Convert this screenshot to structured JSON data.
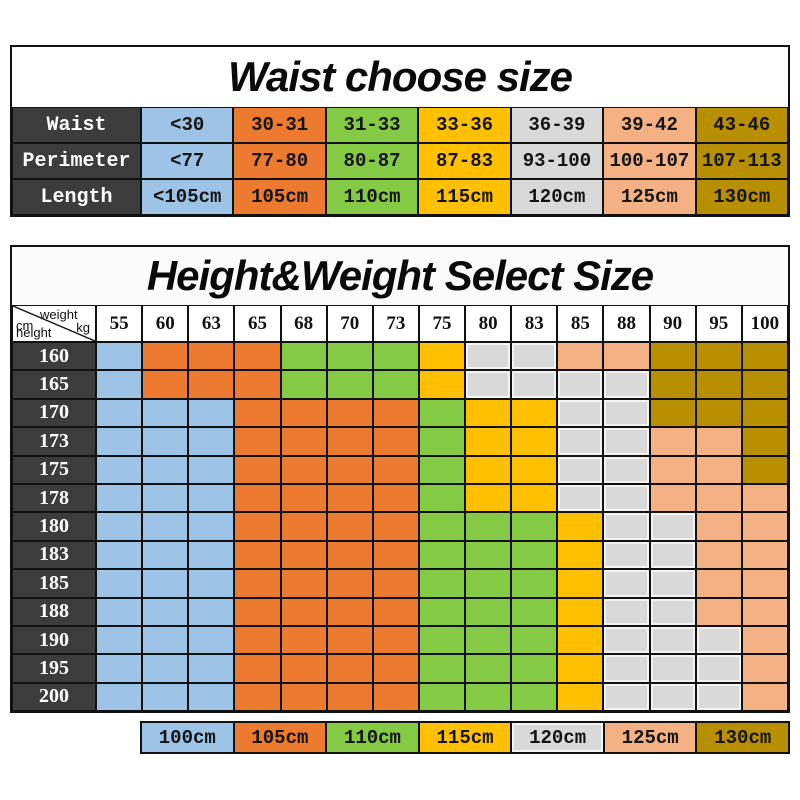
{
  "colors": {
    "B": "#9DC3E6",
    "O": "#EC7B2F",
    "G": "#85CA45",
    "Y": "#FFC000",
    "S": "#D9D9D9",
    "P": "#F4B183",
    "D": "#B78F00",
    "header_dark": "#3C3C3C",
    "border": "#111111"
  },
  "waist_table": {
    "title": "Waist choose size",
    "column_keys": [
      "B",
      "O",
      "G",
      "Y",
      "S",
      "P",
      "D"
    ],
    "rows": [
      {
        "label": "Waist",
        "cells": [
          "<30",
          "30-31",
          "31-33",
          "33-36",
          "36-39",
          "39-42",
          "43-46"
        ]
      },
      {
        "label": "Perimeter",
        "cells": [
          "<77",
          "77-80",
          "80-87",
          "87-83",
          "93-100",
          "100-107",
          "107-113"
        ]
      },
      {
        "label": "Length",
        "cells": [
          "<105cm",
          "105cm",
          "110cm",
          "115cm",
          "120cm",
          "125cm",
          "130cm"
        ]
      }
    ]
  },
  "size_table": {
    "title": "Height&Weight Select Size",
    "corner": {
      "weight": "weight",
      "kg": "kg",
      "cm": "cm",
      "height": "height"
    },
    "weights": [
      "55",
      "60",
      "63",
      "65",
      "68",
      "70",
      "73",
      "75",
      "80",
      "83",
      "85",
      "88",
      "90",
      "95",
      "100"
    ],
    "rows": [
      {
        "height": "160",
        "cells": [
          "B",
          "O",
          "O",
          "O",
          "G",
          "G",
          "G",
          "Y",
          "S",
          "S",
          "P",
          "P",
          "D",
          "D",
          "D"
        ]
      },
      {
        "height": "165",
        "cells": [
          "B",
          "O",
          "O",
          "O",
          "G",
          "G",
          "G",
          "Y",
          "S",
          "S",
          "S",
          "S",
          "D",
          "D",
          "D"
        ]
      },
      {
        "height": "170",
        "cells": [
          "B",
          "B",
          "B",
          "O",
          "O",
          "O",
          "O",
          "G",
          "Y",
          "Y",
          "S",
          "S",
          "D",
          "D",
          "D"
        ]
      },
      {
        "height": "173",
        "cells": [
          "B",
          "B",
          "B",
          "O",
          "O",
          "O",
          "O",
          "G",
          "Y",
          "Y",
          "S",
          "S",
          "P",
          "P",
          "D"
        ]
      },
      {
        "height": "175",
        "cells": [
          "B",
          "B",
          "B",
          "O",
          "O",
          "O",
          "O",
          "G",
          "Y",
          "Y",
          "S",
          "S",
          "P",
          "P",
          "D"
        ]
      },
      {
        "height": "178",
        "cells": [
          "B",
          "B",
          "B",
          "O",
          "O",
          "O",
          "O",
          "G",
          "Y",
          "Y",
          "S",
          "S",
          "P",
          "P",
          "P"
        ]
      },
      {
        "height": "180",
        "cells": [
          "B",
          "B",
          "B",
          "O",
          "O",
          "O",
          "O",
          "G",
          "G",
          "G",
          "Y",
          "S",
          "S",
          "P",
          "P"
        ]
      },
      {
        "height": "183",
        "cells": [
          "B",
          "B",
          "B",
          "O",
          "O",
          "O",
          "O",
          "G",
          "G",
          "G",
          "Y",
          "S",
          "S",
          "P",
          "P"
        ]
      },
      {
        "height": "185",
        "cells": [
          "B",
          "B",
          "B",
          "O",
          "O",
          "O",
          "O",
          "G",
          "G",
          "G",
          "Y",
          "S",
          "S",
          "P",
          "P"
        ]
      },
      {
        "height": "188",
        "cells": [
          "B",
          "B",
          "B",
          "O",
          "O",
          "O",
          "O",
          "G",
          "G",
          "G",
          "Y",
          "S",
          "S",
          "P",
          "P"
        ]
      },
      {
        "height": "190",
        "cells": [
          "B",
          "B",
          "B",
          "O",
          "O",
          "O",
          "O",
          "G",
          "G",
          "G",
          "Y",
          "S",
          "S",
          "S",
          "P"
        ]
      },
      {
        "height": "195",
        "cells": [
          "B",
          "B",
          "B",
          "O",
          "O",
          "O",
          "O",
          "G",
          "G",
          "G",
          "Y",
          "S",
          "S",
          "S",
          "P"
        ]
      },
      {
        "height": "200",
        "cells": [
          "B",
          "B",
          "B",
          "O",
          "O",
          "O",
          "O",
          "G",
          "G",
          "G",
          "Y",
          "S",
          "S",
          "S",
          "P"
        ]
      }
    ],
    "legend": [
      {
        "label": "100cm",
        "key": "B"
      },
      {
        "label": "105cm",
        "key": "O"
      },
      {
        "label": "110cm",
        "key": "G"
      },
      {
        "label": "115cm",
        "key": "Y"
      },
      {
        "label": "120cm",
        "key": "S"
      },
      {
        "label": "125cm",
        "key": "P"
      },
      {
        "label": "130cm",
        "key": "D"
      }
    ]
  },
  "chart_data": [
    {
      "type": "table",
      "title": "Waist choose size",
      "row_labels": [
        "Waist",
        "Perimeter",
        "Length"
      ],
      "rows": [
        [
          "<30",
          "30-31",
          "31-33",
          "33-36",
          "36-39",
          "39-42",
          "43-46"
        ],
        [
          "<77",
          "77-80",
          "80-87",
          "87-83",
          "93-100",
          "100-107",
          "107-113"
        ],
        [
          "<105cm",
          "105cm",
          "110cm",
          "115cm",
          "120cm",
          "125cm",
          "130cm"
        ]
      ],
      "column_color_hex": [
        "#9DC3E6",
        "#EC7B2F",
        "#85CA45",
        "#FFC000",
        "#D9D9D9",
        "#F4B183",
        "#B78F00"
      ]
    },
    {
      "type": "heatmap",
      "title": "Height&Weight Select Size",
      "xlabel": "weight kg",
      "ylabel": "cm height",
      "x": [
        55,
        60,
        63,
        65,
        68,
        70,
        73,
        75,
        80,
        83,
        85,
        88,
        90,
        95,
        100
      ],
      "y": [
        160,
        165,
        170,
        173,
        175,
        178,
        180,
        183,
        185,
        188,
        190,
        195,
        200
      ],
      "values_size_cm": [
        [
          100,
          105,
          105,
          105,
          110,
          110,
          110,
          115,
          120,
          120,
          125,
          125,
          130,
          130,
          130
        ],
        [
          100,
          105,
          105,
          105,
          110,
          110,
          110,
          115,
          120,
          120,
          120,
          120,
          130,
          130,
          130
        ],
        [
          100,
          100,
          100,
          105,
          105,
          105,
          105,
          110,
          115,
          115,
          120,
          120,
          130,
          130,
          130
        ],
        [
          100,
          100,
          100,
          105,
          105,
          105,
          105,
          110,
          115,
          115,
          120,
          120,
          125,
          125,
          130
        ],
        [
          100,
          100,
          100,
          105,
          105,
          105,
          105,
          110,
          115,
          115,
          120,
          120,
          125,
          125,
          130
        ],
        [
          100,
          100,
          100,
          105,
          105,
          105,
          105,
          110,
          115,
          115,
          120,
          120,
          125,
          125,
          125
        ],
        [
          100,
          100,
          100,
          105,
          105,
          105,
          105,
          110,
          110,
          110,
          115,
          120,
          120,
          125,
          125
        ],
        [
          100,
          100,
          100,
          105,
          105,
          105,
          105,
          110,
          110,
          110,
          115,
          120,
          120,
          125,
          125
        ],
        [
          100,
          100,
          100,
          105,
          105,
          105,
          105,
          110,
          110,
          110,
          115,
          120,
          120,
          125,
          125
        ],
        [
          100,
          100,
          100,
          105,
          105,
          105,
          105,
          110,
          110,
          110,
          115,
          120,
          120,
          125,
          125
        ],
        [
          100,
          100,
          100,
          105,
          105,
          105,
          105,
          110,
          110,
          110,
          115,
          120,
          120,
          120,
          125
        ],
        [
          100,
          100,
          100,
          105,
          105,
          105,
          105,
          110,
          110,
          110,
          115,
          120,
          120,
          120,
          125
        ],
        [
          100,
          100,
          100,
          105,
          105,
          105,
          105,
          110,
          110,
          110,
          115,
          120,
          120,
          120,
          125
        ]
      ],
      "legend_position": "bottom",
      "legend": [
        "100cm",
        "105cm",
        "110cm",
        "115cm",
        "120cm",
        "125cm",
        "130cm"
      ]
    }
  ]
}
